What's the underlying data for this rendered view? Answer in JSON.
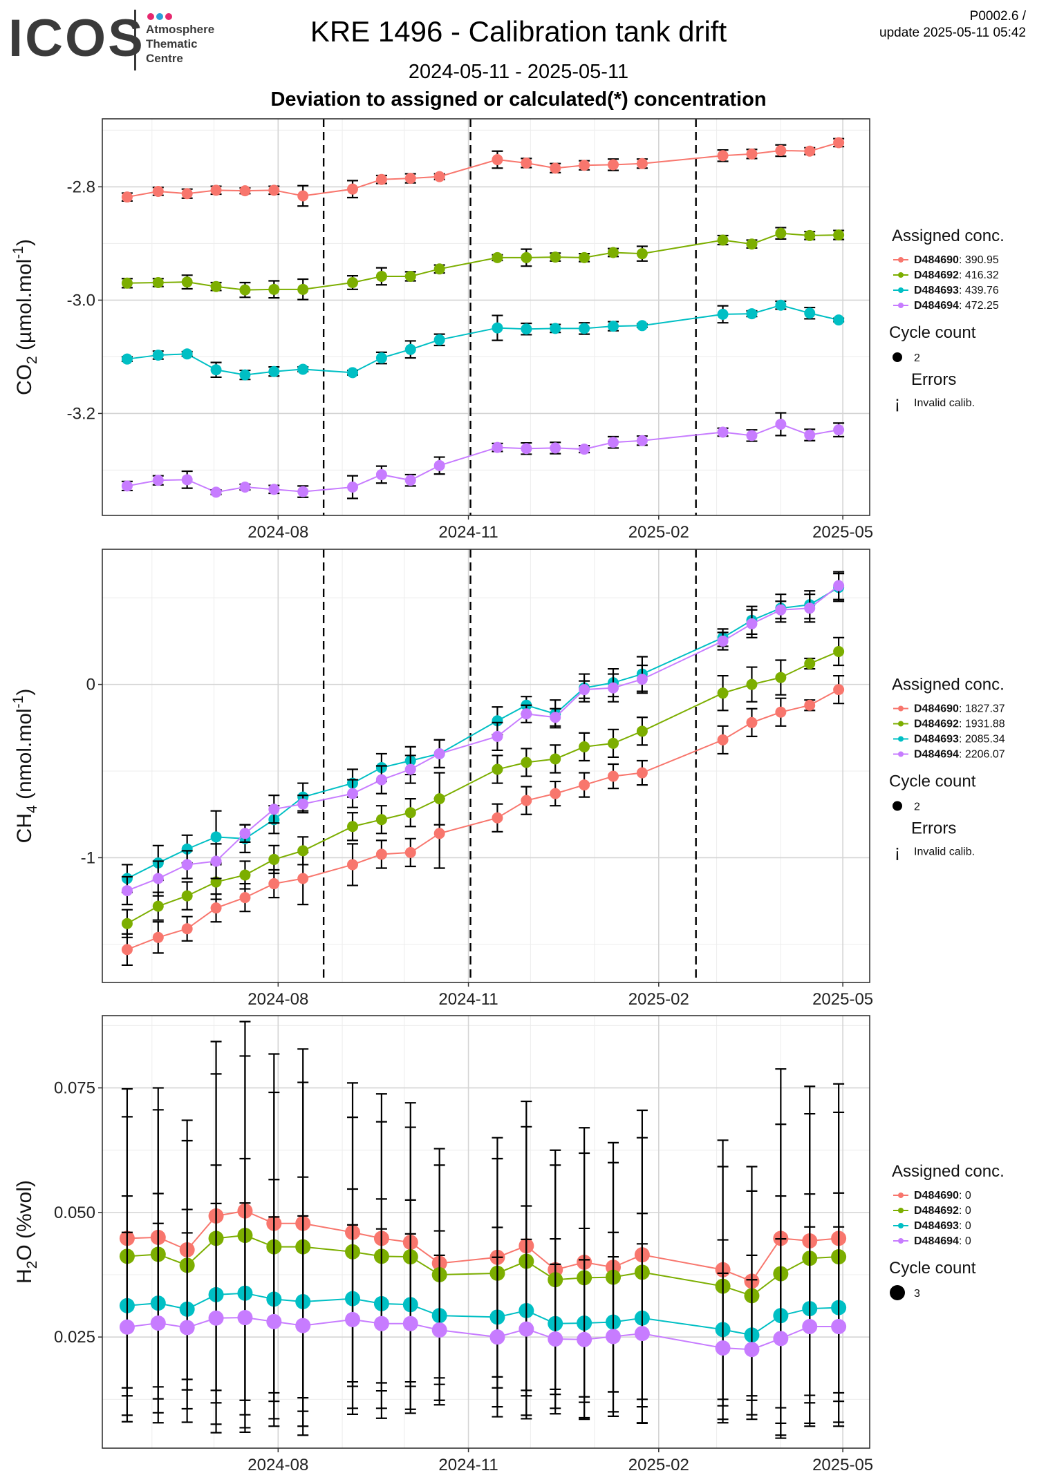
{
  "header": {
    "logo_text": "ICOS",
    "logo_subtitle": "Atmosphere\nThematic\nCentre",
    "logo_dot_colors": [
      "#e6286e",
      "#2a9fd8",
      "#e6286e"
    ],
    "title": "KRE 1496 - Calibration tank drift",
    "period": "2024-05-11 - 2025-05-11",
    "subtitle": "Deviation to assigned or calculated(*) concentration",
    "version": "P0002.6 /\nupdate  2025-05-11 05:42"
  },
  "colors": {
    "D484690": "#F8766D",
    "D484692": "#7CAE00",
    "D484693": "#00BFC4",
    "D484694": "#C77CFF"
  },
  "chart_data": [
    {
      "type": "line",
      "ylabel": "CO2 (µmol.mol-1)",
      "ylabel_main": "CO",
      "ylabel_sub": "2",
      "ylabel_rest": " (µmol.mol",
      "ylabel_sup": "-1",
      "ylabel_end": ")",
      "x_ticks": [
        "2024-08",
        "2024-11",
        "2025-02",
        "2025-05"
      ],
      "y_ticks": [
        -2.8,
        -3.0,
        -3.2
      ],
      "y_tick_labels": [
        "-2.8",
        "-3.0",
        "-3.2"
      ],
      "ylim": [
        -3.38,
        -2.68
      ],
      "vlines": [
        "2024-08-23",
        "2024-11-02",
        "2025-02-19"
      ],
      "legend": {
        "title": "Assigned conc.",
        "entries": [
          {
            "id": "D484690",
            "value": "390.95"
          },
          {
            "id": "D484692",
            "value": "416.32"
          },
          {
            "id": "D484693",
            "value": "439.76"
          },
          {
            "id": "D484694",
            "value": "472.25"
          }
        ],
        "cycle_title": "Cycle count",
        "cycle_value": "2",
        "errors_title": "Errors",
        "errors_symbol": "¡",
        "errors_label": "Invalid calib."
      },
      "x": [
        "2024-05-20",
        "2024-06-04",
        "2024-06-18",
        "2024-07-02",
        "2024-07-16",
        "2024-07-30",
        "2024-08-13",
        "2024-09-06",
        "2024-09-20",
        "2024-10-04",
        "2024-10-18",
        "2024-11-15",
        "2024-11-29",
        "2024-12-13",
        "2024-12-27",
        "2025-01-10",
        "2025-01-24",
        "2025-03-04",
        "2025-03-18",
        "2025-04-01",
        "2025-04-15",
        "2025-04-29"
      ],
      "series": [
        {
          "id": "D484690",
          "values": [
            -2.818,
            -2.808,
            -2.812,
            -2.806,
            -2.807,
            -2.806,
            -2.816,
            -2.804,
            -2.787,
            -2.785,
            -2.782,
            -2.752,
            -2.758,
            -2.767,
            -2.762,
            -2.761,
            -2.759,
            -2.745,
            -2.742,
            -2.736,
            -2.737,
            -2.722
          ],
          "err": [
            0.007,
            0.007,
            0.008,
            0.007,
            0.005,
            0.007,
            0.018,
            0.015,
            0.007,
            0.008,
            0.005,
            0.015,
            0.008,
            0.008,
            0.008,
            0.01,
            0.008,
            0.01,
            0.008,
            0.01,
            0.006,
            0.007
          ]
        },
        {
          "id": "D484692",
          "values": [
            -2.97,
            -2.969,
            -2.968,
            -2.976,
            -2.982,
            -2.981,
            -2.981,
            -2.969,
            -2.958,
            -2.958,
            -2.945,
            -2.925,
            -2.925,
            -2.924,
            -2.925,
            -2.916,
            -2.918,
            -2.894,
            -2.901,
            -2.882,
            -2.886,
            -2.885
          ],
          "err": [
            0.008,
            0.007,
            0.012,
            0.007,
            0.013,
            0.015,
            0.018,
            0.012,
            0.015,
            0.008,
            0.007,
            0.005,
            0.015,
            0.007,
            0.007,
            0.007,
            0.013,
            0.008,
            0.007,
            0.01,
            0.007,
            0.008
          ]
        },
        {
          "id": "D484693",
          "values": [
            -3.104,
            -3.097,
            -3.095,
            -3.123,
            -3.132,
            -3.126,
            -3.122,
            -3.128,
            -3.102,
            -3.087,
            -3.07,
            -3.049,
            -3.051,
            -3.05,
            -3.05,
            -3.046,
            -3.045,
            -3.025,
            -3.024,
            -3.009,
            -3.023,
            -3.035
          ],
          "err": [
            0.004,
            0.007,
            0.004,
            0.013,
            0.008,
            0.008,
            0.004,
            0.004,
            0.01,
            0.015,
            0.01,
            0.022,
            0.01,
            0.007,
            0.01,
            0.008,
            0.003,
            0.015,
            0.005,
            0.007,
            0.01,
            0.003
          ]
        },
        {
          "id": "D484694",
          "values": [
            -3.328,
            -3.318,
            -3.317,
            -3.339,
            -3.33,
            -3.334,
            -3.338,
            -3.33,
            -3.308,
            -3.318,
            -3.292,
            -3.26,
            -3.262,
            -3.261,
            -3.263,
            -3.251,
            -3.248,
            -3.233,
            -3.239,
            -3.219,
            -3.238,
            -3.229
          ],
          "err": [
            0.008,
            0.008,
            0.015,
            0.004,
            0.005,
            0.007,
            0.01,
            0.02,
            0.015,
            0.01,
            0.015,
            0.007,
            0.01,
            0.01,
            0.006,
            0.01,
            0.008,
            0.007,
            0.01,
            0.02,
            0.01,
            0.012
          ]
        }
      ]
    },
    {
      "type": "line",
      "ylabel": "CH4 (nmol.mol-1)",
      "ylabel_main": "CH",
      "ylabel_sub": "4",
      "ylabel_rest": " (nmol.mol",
      "ylabel_sup": "-1",
      "ylabel_end": ")",
      "x_ticks": [
        "2024-08",
        "2024-11",
        "2025-02",
        "2025-05"
      ],
      "y_ticks": [
        0,
        -1
      ],
      "y_tick_labels": [
        "0",
        "-1"
      ],
      "ylim": [
        -1.72,
        0.78
      ],
      "vlines": [
        "2024-08-23",
        "2024-11-02",
        "2025-02-19"
      ],
      "legend": {
        "title": "Assigned conc.",
        "entries": [
          {
            "id": "D484690",
            "value": "1827.37"
          },
          {
            "id": "D484692",
            "value": "1931.88"
          },
          {
            "id": "D484693",
            "value": "2085.34"
          },
          {
            "id": "D484694",
            "value": "2206.07"
          }
        ],
        "cycle_title": "Cycle count",
        "cycle_value": "2",
        "errors_title": "Errors",
        "errors_symbol": "¡",
        "errors_label": "Invalid calib."
      },
      "x": [
        "2024-05-20",
        "2024-06-04",
        "2024-06-18",
        "2024-07-02",
        "2024-07-16",
        "2024-07-30",
        "2024-08-13",
        "2024-09-06",
        "2024-09-20",
        "2024-10-04",
        "2024-10-18",
        "2024-11-15",
        "2024-11-29",
        "2024-12-13",
        "2024-12-27",
        "2025-01-10",
        "2025-01-24",
        "2025-03-04",
        "2025-03-18",
        "2025-04-01",
        "2025-04-15",
        "2025-04-29"
      ],
      "series": [
        {
          "id": "D484690",
          "values": [
            -1.53,
            -1.46,
            -1.41,
            -1.29,
            -1.23,
            -1.15,
            -1.12,
            -1.04,
            -0.98,
            -0.97,
            -0.86,
            -0.77,
            -0.67,
            -0.63,
            -0.58,
            -0.53,
            -0.51,
            -0.32,
            -0.22,
            -0.16,
            -0.12,
            -0.03
          ],
          "err": [
            0.09,
            0.09,
            0.07,
            0.08,
            0.08,
            0.08,
            0.15,
            0.12,
            0.08,
            0.08,
            0.2,
            0.08,
            0.08,
            0.07,
            0.07,
            0.07,
            0.07,
            0.08,
            0.08,
            0.08,
            0.03,
            0.08
          ]
        },
        {
          "id": "D484692",
          "values": [
            -1.38,
            -1.28,
            -1.22,
            -1.14,
            -1.1,
            -1.01,
            -0.96,
            -0.82,
            -0.78,
            -0.74,
            -0.66,
            -0.49,
            -0.45,
            -0.43,
            -0.36,
            -0.34,
            -0.27,
            -0.05,
            0.0,
            0.04,
            0.12,
            0.19
          ],
          "err": [
            0.08,
            0.08,
            0.08,
            0.1,
            0.08,
            0.08,
            0.08,
            0.08,
            0.08,
            0.08,
            0.15,
            0.08,
            0.08,
            0.08,
            0.08,
            0.08,
            0.08,
            0.1,
            0.1,
            0.1,
            0.03,
            0.08
          ]
        },
        {
          "id": "D484693",
          "values": [
            -1.12,
            -1.03,
            -0.95,
            -0.88,
            -0.89,
            -0.78,
            -0.65,
            -0.57,
            -0.48,
            -0.44,
            -0.4,
            -0.21,
            -0.12,
            -0.17,
            -0.02,
            0.01,
            0.06,
            0.27,
            0.37,
            0.44,
            0.46,
            0.56
          ],
          "err": [
            0.08,
            0.1,
            0.08,
            0.15,
            0.08,
            0.08,
            0.08,
            0.08,
            0.08,
            0.08,
            0.08,
            0.08,
            0.05,
            0.08,
            0.08,
            0.08,
            0.1,
            0.05,
            0.08,
            0.08,
            0.08,
            0.08
          ]
        },
        {
          "id": "D484694",
          "values": [
            -1.19,
            -1.12,
            -1.04,
            -1.02,
            -0.86,
            -0.72,
            -0.69,
            -0.63,
            -0.55,
            -0.49,
            -0.4,
            -0.3,
            -0.17,
            -0.19,
            -0.03,
            -0.02,
            0.03,
            0.25,
            0.35,
            0.43,
            0.44,
            0.57
          ],
          "err": [
            0.08,
            0.1,
            0.08,
            0.1,
            0.05,
            0.08,
            0.05,
            0.08,
            0.08,
            0.08,
            0.08,
            0.08,
            0.05,
            0.05,
            0.05,
            0.08,
            0.08,
            0.05,
            0.08,
            0.05,
            0.08,
            0.08
          ]
        }
      ]
    },
    {
      "type": "line",
      "ylabel": "H2O (%vol)",
      "ylabel_main": "H",
      "ylabel_sub": "2",
      "ylabel_rest": "O (%vol)",
      "ylabel_sup": "",
      "ylabel_end": "",
      "x_ticks": [
        "2024-08",
        "2024-11",
        "2025-02",
        "2025-05"
      ],
      "y_ticks": [
        0.075,
        0.05,
        0.025
      ],
      "y_tick_labels": [
        "0.075",
        "0.050",
        "0.025"
      ],
      "ylim": [
        0.0027,
        0.0895
      ],
      "vlines": [],
      "legend": {
        "title": "Assigned conc.",
        "entries": [
          {
            "id": "D484690",
            "value": "0"
          },
          {
            "id": "D484692",
            "value": "0"
          },
          {
            "id": "D484693",
            "value": "0"
          },
          {
            "id": "D484694",
            "value": "0"
          }
        ],
        "cycle_title": "Cycle count",
        "cycle_value": "3"
      },
      "x": [
        "2024-05-20",
        "2024-06-04",
        "2024-06-18",
        "2024-07-02",
        "2024-07-16",
        "2024-07-30",
        "2024-08-13",
        "2024-09-06",
        "2024-09-20",
        "2024-10-04",
        "2024-10-18",
        "2024-11-15",
        "2024-11-29",
        "2024-12-13",
        "2024-12-27",
        "2025-01-10",
        "2025-01-24",
        "2025-03-04",
        "2025-03-18",
        "2025-04-01",
        "2025-04-15",
        "2025-04-29"
      ],
      "series": [
        {
          "id": "D484690",
          "values": [
            0.0448,
            0.045,
            0.0425,
            0.0493,
            0.0503,
            0.0478,
            0.0478,
            0.046,
            0.0448,
            0.044,
            0.0398,
            0.041,
            0.0433,
            0.0385,
            0.04,
            0.039,
            0.0415,
            0.0385,
            0.0362,
            0.0448,
            0.0443,
            0.0448
          ],
          "err": [
            0.03,
            0.03,
            0.026,
            0.035,
            0.038,
            0.034,
            0.035,
            0.03,
            0.029,
            0.028,
            0.023,
            0.024,
            0.029,
            0.024,
            0.027,
            0.025,
            0.029,
            0.026,
            0.023,
            0.034,
            0.031,
            0.031
          ]
        },
        {
          "id": "D484692",
          "values": [
            0.0412,
            0.0416,
            0.0394,
            0.0448,
            0.0454,
            0.0431,
            0.0431,
            0.0421,
            0.0412,
            0.0411,
            0.0375,
            0.0378,
            0.0402,
            0.0365,
            0.0369,
            0.037,
            0.038,
            0.0352,
            0.0333,
            0.0377,
            0.0408,
            0.0411
          ],
          "err": [
            0.028,
            0.029,
            0.025,
            0.033,
            0.036,
            0.031,
            0.033,
            0.027,
            0.027,
            0.026,
            0.022,
            0.023,
            0.027,
            0.023,
            0.025,
            0.023,
            0.027,
            0.024,
            0.021,
            0.03,
            0.029,
            0.029
          ]
        },
        {
          "id": "D484693",
          "values": [
            0.0313,
            0.0318,
            0.0306,
            0.0335,
            0.0338,
            0.0326,
            0.0321,
            0.0327,
            0.0317,
            0.0315,
            0.0293,
            0.029,
            0.0303,
            0.0277,
            0.0278,
            0.028,
            0.0288,
            0.0265,
            0.0254,
            0.0293,
            0.0307,
            0.0309
          ],
          "err": [
            0.022,
            0.022,
            0.02,
            0.026,
            0.027,
            0.024,
            0.025,
            0.022,
            0.021,
            0.021,
            0.017,
            0.018,
            0.021,
            0.017,
            0.019,
            0.018,
            0.021,
            0.018,
            0.016,
            0.024,
            0.023,
            0.023
          ]
        },
        {
          "id": "D484694",
          "values": [
            0.027,
            0.0278,
            0.0269,
            0.0288,
            0.0289,
            0.0281,
            0.0273,
            0.0285,
            0.0277,
            0.0277,
            0.0264,
            0.025,
            0.0266,
            0.0246,
            0.0245,
            0.0251,
            0.0257,
            0.0228,
            0.0225,
            0.0247,
            0.0271,
            0.0271
          ],
          "err": [
            0.019,
            0.02,
            0.019,
            0.023,
            0.023,
            0.021,
            0.022,
            0.019,
            0.019,
            0.018,
            0.015,
            0.016,
            0.018,
            0.015,
            0.016,
            0.016,
            0.018,
            0.015,
            0.014,
            0.02,
            0.02,
            0.02
          ]
        }
      ]
    }
  ]
}
